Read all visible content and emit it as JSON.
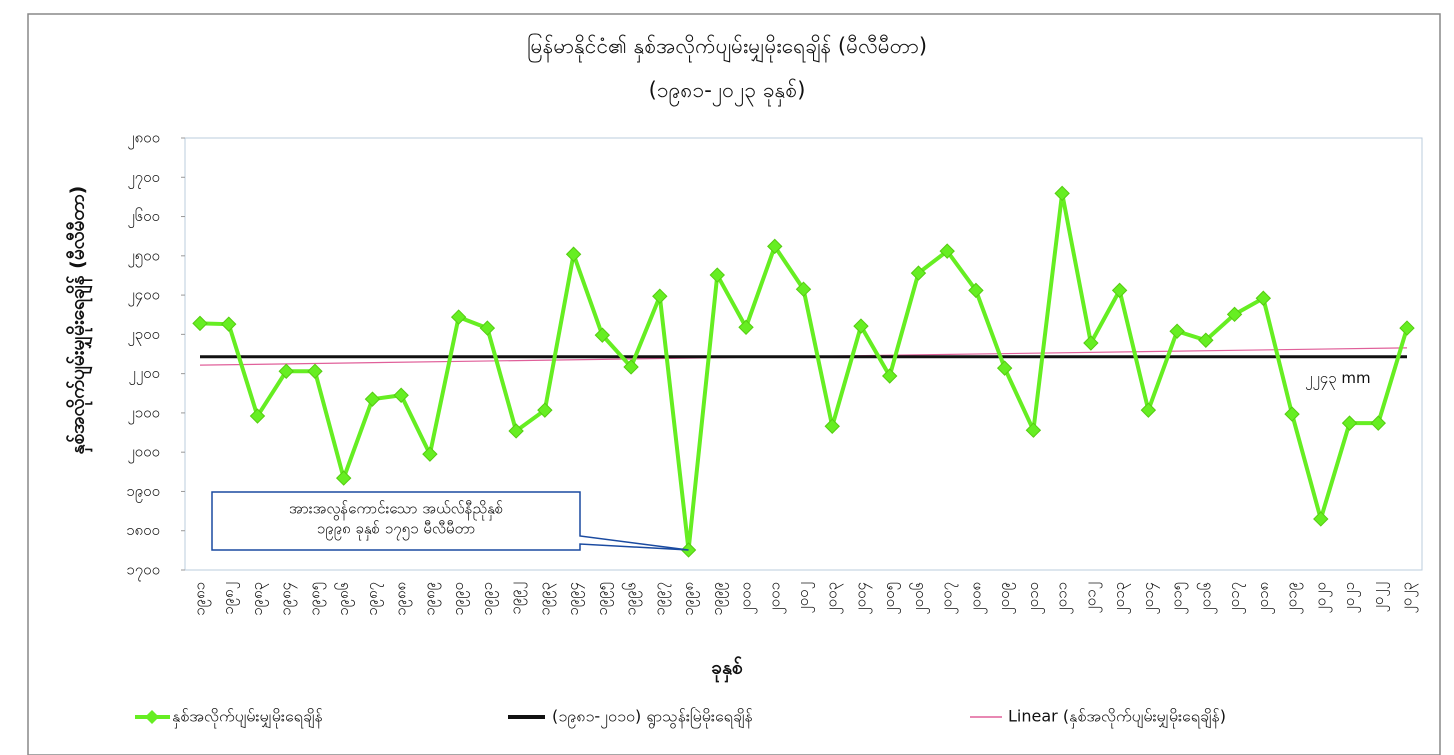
{
  "chart_data": {
    "type": "line",
    "title": "မြန်မာနိုင်ငံ၏ နှစ်အလိုက်ပျမ်းမျှမိုးရေချိန် (မီလီမီတာ)",
    "subtitle": "(၁၉၈၁-၂၀၂၃ ခုနှစ်)",
    "x_label": "ခုနှစ်",
    "y_label": "နှစ်အလိုက်ပျမ်းမျှမိုးရေချိန် (မီလီမီတာ)",
    "categories": [
      "၁၉၈၁",
      "၁၉၈၂",
      "၁၉၈၃",
      "၁၉၈၄",
      "၁၉၈၅",
      "၁၉၈၆",
      "၁၉၈၇",
      "၁၉၈၈",
      "၁၉၈၉",
      "၁၉၉၀",
      "၁၉၉၁",
      "၁၉၉၂",
      "၁၉၉၃",
      "၁၉၉၄",
      "၁၉၉၅",
      "၁၉၉၆",
      "၁၉၉၇",
      "၁၉၉၈",
      "၁၉၉၉",
      "၂၀၀၀",
      "၂၀၀၁",
      "၂၀၀၂",
      "၂၀၀၃",
      "၂၀၀၄",
      "၂၀၀၅",
      "၂၀၀၆",
      "၂၀၀၇",
      "၂၀၀၈",
      "၂၀၀၉",
      "၂၀၁၀",
      "၂၀၁၁",
      "၂၀၁၂",
      "၂၀၁၃",
      "၂၀၁၄",
      "၂၀၁၅",
      "၂၀၁၆",
      "၂၀၁၇",
      "၂၀၁၈",
      "၂၀၁၉",
      "၂၀၂၀",
      "၂၀၂၁",
      "၂၀၂၂",
      "၂၀၂၃"
    ],
    "series": [
      {
        "name": "နှစ်အလိုက်ပျမ်းမျှမိုးရေချိန်",
        "color": "#66ee22",
        "values": [
          2328,
          2326,
          2092,
          2206,
          2206,
          1934,
          2135,
          2145,
          1995,
          2344,
          2316,
          2054,
          2107,
          2504,
          2298,
          2217,
          2397,
          1751,
          2451,
          2318,
          2524,
          2415,
          2066,
          2321,
          2194,
          2456,
          2512,
          2412,
          2214,
          2056,
          2659,
          2278,
          2412,
          2107,
          2308,
          2285,
          2351,
          2392,
          2097,
          1830,
          2074,
          2074,
          2316
        ]
      }
    ],
    "reference": {
      "name": "(၁၉၈၁-၂၀၁၀) ရွာသွန်းမြဲမိုးရေချိန်",
      "color": "#111111",
      "value": 2243,
      "value_label": "၂၂၄၃ mm"
    },
    "trend": {
      "name": "Linear (နှစ်အလိုက်ပျမ်းမျှမိုးရေချိန်)",
      "color": "#e0609a"
    },
    "annotation": {
      "lines": [
        "အားအလွန်ကောင်းသော အယ်လ်နီညိုနှစ်",
        "၁၉၉၈ ခုနှစ် ၁၇၅၁ မီလီမီတာ"
      ],
      "target": "chart_data.series.0.values.17"
    },
    "ylim": [
      1700,
      2800
    ],
    "yticks": [
      {
        "value": 1700,
        "label": "၁၇၀၀"
      },
      {
        "value": 1800,
        "label": "၁၈၀၀"
      },
      {
        "value": 1900,
        "label": "၁၉၀၀"
      },
      {
        "value": 2000,
        "label": "၂၀၀၀"
      },
      {
        "value": 2100,
        "label": "၂၁၀၀"
      },
      {
        "value": 2200,
        "label": "၂၂၀၀"
      },
      {
        "value": 2300,
        "label": "၂၃၀၀"
      },
      {
        "value": 2400,
        "label": "၂၄၀၀"
      },
      {
        "value": 2500,
        "label": "၂၅၀၀"
      },
      {
        "value": 2600,
        "label": "၂၆၀၀"
      },
      {
        "value": 2700,
        "label": "၂၇၀၀"
      },
      {
        "value": 2800,
        "label": "၂၈၀၀"
      }
    ],
    "grid": false,
    "legend": "bottom"
  }
}
